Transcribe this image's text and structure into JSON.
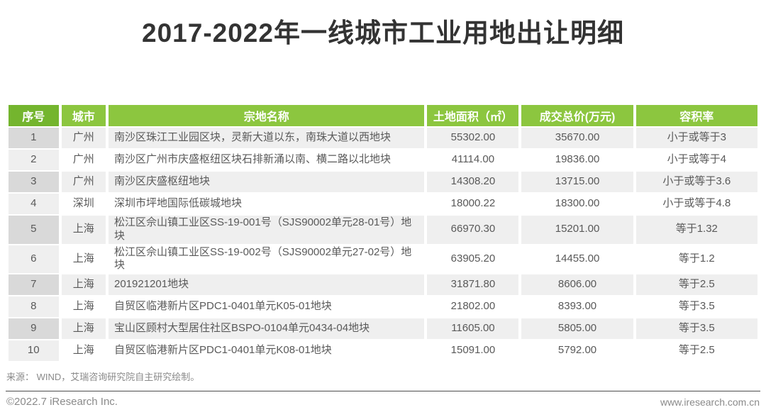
{
  "chart_data": {
    "type": "table",
    "title": "2017-2022年一线城市工业用地出让明细",
    "columns": [
      "序号",
      "城市",
      "宗地名称",
      "土地面积（㎡）",
      "成交总价(万元)",
      "容积率"
    ],
    "rows": [
      {
        "seq": "1",
        "city": "广州",
        "parcel": "南沙区珠江工业园区块，灵新大道以东，南珠大道以西地块",
        "area": "55302.00",
        "price": "35670.00",
        "far": "小于或等于3"
      },
      {
        "seq": "2",
        "city": "广州",
        "parcel": "南沙区广州市庆盛枢纽区块石排新涌以南、横二路以北地块",
        "area": "41114.00",
        "price": "19836.00",
        "far": "小于或等于4"
      },
      {
        "seq": "3",
        "city": "广州",
        "parcel": "南沙区庆盛枢纽地块",
        "area": "14308.20",
        "price": "13715.00",
        "far": "小于或等于3.6"
      },
      {
        "seq": "4",
        "city": "深圳",
        "parcel": "深圳市坪地国际低碳城地块",
        "area": "18000.22",
        "price": "18300.00",
        "far": "小于或等于4.8"
      },
      {
        "seq": "5",
        "city": "上海",
        "parcel": "松江区佘山镇工业区SS-19-001号（SJS90002单元28-01号）地块",
        "area": "66970.30",
        "price": "15201.00",
        "far": "等于1.32"
      },
      {
        "seq": "6",
        "city": "上海",
        "parcel": "松江区佘山镇工业区SS-19-002号（SJS90002单元27-02号）地块",
        "area": "63905.20",
        "price": "14455.00",
        "far": "等于1.2"
      },
      {
        "seq": "7",
        "city": "上海",
        "parcel": "201921201地块",
        "area": "31871.80",
        "price": "8606.00",
        "far": "等于2.5"
      },
      {
        "seq": "8",
        "city": "上海",
        "parcel": "自贸区临港新片区PDC1-0401单元K05-01地块",
        "area": "21802.00",
        "price": "8393.00",
        "far": "等于3.5"
      },
      {
        "seq": "9",
        "city": "上海",
        "parcel": "宝山区顾村大型居住社区BSPO-0104单元0434-04地块",
        "area": "11605.00",
        "price": "5805.00",
        "far": "等于3.5"
      },
      {
        "seq": "10",
        "city": "上海",
        "parcel": "自贸区临港新片区PDC1-0401单元K08-01地块",
        "area": "15091.00",
        "price": "5792.00",
        "far": "等于2.5"
      }
    ]
  },
  "footer": {
    "source_note": "来源： WIND，艾瑞咨询研究院自主研究绘制。",
    "copyright": "©2022.7 iResearch Inc.",
    "website": "www.iresearch.com.cn"
  },
  "colors": {
    "header_green": "#8cc63f",
    "header_green_dark": "#74b52e",
    "row_odd": "#efefef",
    "row_odd_first": "#d9d9d9",
    "row_even": "#ffffff",
    "row_even_first": "#efefef",
    "cell_text": "#595959",
    "title_text": "#333333",
    "footer_text": "#8a8a8a",
    "divider": "#4d4d4d"
  }
}
